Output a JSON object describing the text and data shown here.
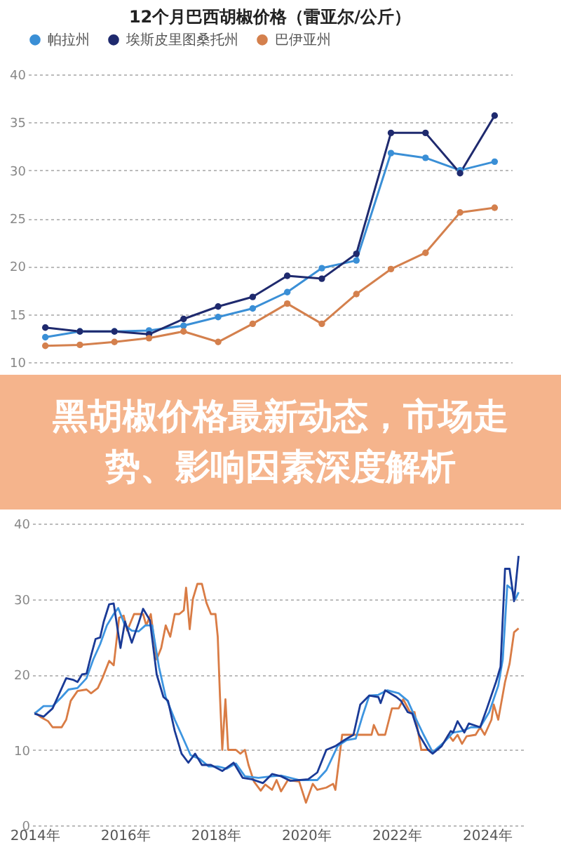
{
  "chart_data": [
    {
      "type": "line",
      "title": "12个月巴西胡椒价格（雷亚尔/公斤）",
      "categories": [
        null,
        null,
        null,
        null,
        null,
        null,
        null,
        null,
        null,
        null,
        null,
        null,
        null,
        null
      ],
      "ylim": [
        10,
        40
      ],
      "yticks": [
        10,
        15,
        20,
        25,
        30,
        35,
        40
      ],
      "grid": "y",
      "legend": "top",
      "marker": "circle",
      "tick_labels": "y",
      "series": [
        {
          "name": "帕拉州",
          "color": "#3a8fd6",
          "values": [
            12.6,
            13.2,
            13.2,
            13.3,
            13.8,
            14.7,
            15.6,
            17.3,
            19.8,
            20.6,
            31.8,
            31.3,
            30.0,
            30.9
          ]
        },
        {
          "name": "埃斯皮里图桑托州",
          "color": "#1f2a6e",
          "values": [
            13.6,
            13.2,
            13.2,
            12.9,
            14.5,
            15.8,
            16.8,
            19.0,
            18.7,
            21.3,
            33.9,
            33.9,
            29.7,
            35.7
          ]
        },
        {
          "name": "巴伊亚州",
          "color": "#d4804d",
          "values": [
            11.7,
            11.8,
            12.1,
            12.5,
            13.2,
            12.1,
            14.0,
            16.1,
            14.0,
            17.1,
            19.7,
            21.4,
            25.6,
            26.1
          ]
        }
      ]
    },
    {
      "type": "line",
      "title": "黑胡椒价格最新动态，市场走势、影响因素深度解析",
      "xlim": [
        2013.95,
        2024.8
      ],
      "xticks": [
        {
          "value": 2014,
          "label": "2014年"
        },
        {
          "value": 2016,
          "label": "2016年"
        },
        {
          "value": 2018,
          "label": "2018年"
        },
        {
          "value": 2020,
          "label": "2020年"
        },
        {
          "value": 2022,
          "label": "2022年"
        },
        {
          "value": 2024,
          "label": "2024年"
        }
      ],
      "ylim": [
        0,
        40
      ],
      "yticks": [
        0,
        10,
        20,
        30,
        40
      ],
      "grid": "y",
      "marker": "none",
      "series": [
        {
          "color": "#d97c45",
          "x": [
            2014.0,
            2014.15,
            2014.3,
            2014.4,
            2014.6,
            2014.7,
            2014.8,
            2014.95,
            2015.15,
            2015.25,
            2015.4,
            2015.5,
            2015.65,
            2015.75,
            2015.87,
            2015.97,
            2016.05,
            2016.2,
            2016.4,
            2016.47,
            2016.57,
            2016.7,
            2016.8,
            2016.9,
            2017.0,
            2017.1,
            2017.2,
            2017.3,
            2017.35,
            2017.43,
            2017.5,
            2017.6,
            2017.7,
            2017.8,
            2017.9,
            2018.0,
            2018.05,
            2018.1,
            2018.15,
            2018.22,
            2018.28,
            2018.45,
            2018.55,
            2018.65,
            2018.73,
            2018.85,
            2019.0,
            2019.1,
            2019.25,
            2019.35,
            2019.45,
            2019.6,
            2019.85,
            2020.0,
            2020.15,
            2020.25,
            2020.45,
            2020.6,
            2020.65,
            2020.8,
            2021.45,
            2021.5,
            2021.6,
            2021.75,
            2021.9,
            2022.05,
            2022.15,
            2022.3,
            2022.4,
            2022.55,
            2022.75,
            2022.85,
            2023.05,
            2023.15,
            2023.25,
            2023.35,
            2023.45,
            2023.55,
            2023.75,
            2023.85,
            2023.95,
            2024.1,
            2024.15,
            2024.25,
            2024.4,
            2024.5,
            2024.6,
            2024.7
          ],
          "values": [
            15,
            14.3,
            13.8,
            13,
            13,
            14,
            16.5,
            17.8,
            18,
            17.5,
            18.2,
            19.5,
            21.8,
            21.2,
            27.5,
            27.8,
            25.8,
            28,
            28,
            26.5,
            28,
            22,
            23.5,
            26.5,
            25,
            28,
            28,
            28.5,
            31.5,
            26,
            30,
            32,
            32,
            29.5,
            28,
            28,
            25,
            17,
            10,
            16.7,
            10,
            10,
            9.5,
            10,
            8,
            5.8,
            4.6,
            5.4,
            4.7,
            6.0,
            4.5,
            6.0,
            5.8,
            3,
            5.5,
            4.7,
            5.0,
            5.5,
            4.7,
            12,
            12,
            13.3,
            12,
            12,
            15.5,
            15.5,
            16.7,
            15,
            15,
            10,
            10,
            9.8,
            11,
            12,
            11.2,
            12,
            10.8,
            11.8,
            12,
            13,
            12,
            14,
            16,
            14,
            19,
            21.4,
            25.6,
            26.1
          ]
        },
        {
          "color": "#3d95e0",
          "x": [
            2014.0,
            2014.2,
            2014.4,
            2014.6,
            2014.75,
            2014.95,
            2015.15,
            2015.3,
            2015.45,
            2015.6,
            2015.75,
            2015.85,
            2016.0,
            2016.15,
            2016.3,
            2016.45,
            2016.6,
            2016.75,
            2016.9,
            2017.1,
            2017.25,
            2017.45,
            2017.65,
            2017.85,
            2018.05,
            2018.25,
            2018.45,
            2018.65,
            2018.95,
            2019.25,
            2019.45,
            2019.85,
            2020.25,
            2020.45,
            2020.7,
            2020.9,
            2021.1,
            2021.25,
            2021.4,
            2021.6,
            2021.8,
            2022.05,
            2022.25,
            2022.4,
            2022.6,
            2022.8,
            2023.05,
            2023.25,
            2023.45,
            2023.65,
            2023.85,
            2024.05,
            2024.25,
            2024.35,
            2024.45,
            2024.55,
            2024.63,
            2024.7
          ],
          "values": [
            14.8,
            15.8,
            15.8,
            17,
            18,
            18.2,
            19.5,
            22,
            24,
            26.5,
            28,
            28.8,
            26.5,
            25.8,
            25.7,
            26.5,
            26.5,
            21,
            17,
            14,
            12,
            9.3,
            8.8,
            7.8,
            7.8,
            7.5,
            8.2,
            6.5,
            6.3,
            6.5,
            6.6,
            6.0,
            6.0,
            7.3,
            10.5,
            11.3,
            11.5,
            14.5,
            17.2,
            17.3,
            17.9,
            17.5,
            16.5,
            14.5,
            12,
            9.7,
            11,
            12.3,
            12.5,
            13,
            13,
            15,
            18.5,
            22,
            31.8,
            31.3,
            30,
            30.9
          ]
        },
        {
          "color": "#1a3a96",
          "x": [
            2014.0,
            2014.2,
            2014.4,
            2014.55,
            2014.7,
            2014.85,
            2014.95,
            2015.05,
            2015.15,
            2015.25,
            2015.35,
            2015.45,
            2015.53,
            2015.65,
            2015.75,
            2015.9,
            2016.0,
            2016.15,
            2016.3,
            2016.4,
            2016.55,
            2016.7,
            2016.85,
            2016.95,
            2017.1,
            2017.25,
            2017.4,
            2017.55,
            2017.7,
            2017.9,
            2018.15,
            2018.4,
            2018.6,
            2018.8,
            2019.05,
            2019.25,
            2019.45,
            2019.65,
            2020.05,
            2020.25,
            2020.45,
            2020.65,
            2020.85,
            2021.05,
            2021.2,
            2021.4,
            2021.6,
            2021.65,
            2021.75,
            2022.0,
            2022.1,
            2022.25,
            2022.35,
            2022.5,
            2022.7,
            2022.8,
            2023.0,
            2023.2,
            2023.25,
            2023.35,
            2023.5,
            2023.6,
            2023.85,
            2024.0,
            2024.2,
            2024.3,
            2024.4,
            2024.5,
            2024.6,
            2024.7
          ],
          "values": [
            14.8,
            14.4,
            15.5,
            17.5,
            19.5,
            19.3,
            19,
            20,
            20.1,
            22.5,
            24.7,
            24.9,
            27,
            29.3,
            29.4,
            23.5,
            27,
            24.2,
            26.8,
            28.7,
            27.2,
            20,
            17,
            16.5,
            12.5,
            9.5,
            8.3,
            9.5,
            8.0,
            8.0,
            7.2,
            8.3,
            6.3,
            6.1,
            5.6,
            6.8,
            6.5,
            5.9,
            6.1,
            7.0,
            10,
            10.5,
            11.3,
            12,
            16,
            17.2,
            17,
            16.2,
            17.9,
            17,
            16.5,
            15,
            14.8,
            12,
            10,
            9.5,
            10.5,
            12.5,
            12.3,
            13.8,
            12.3,
            13.5,
            13,
            15.5,
            19,
            21,
            34,
            34,
            29.7,
            35.7
          ]
        }
      ]
    }
  ]
}
